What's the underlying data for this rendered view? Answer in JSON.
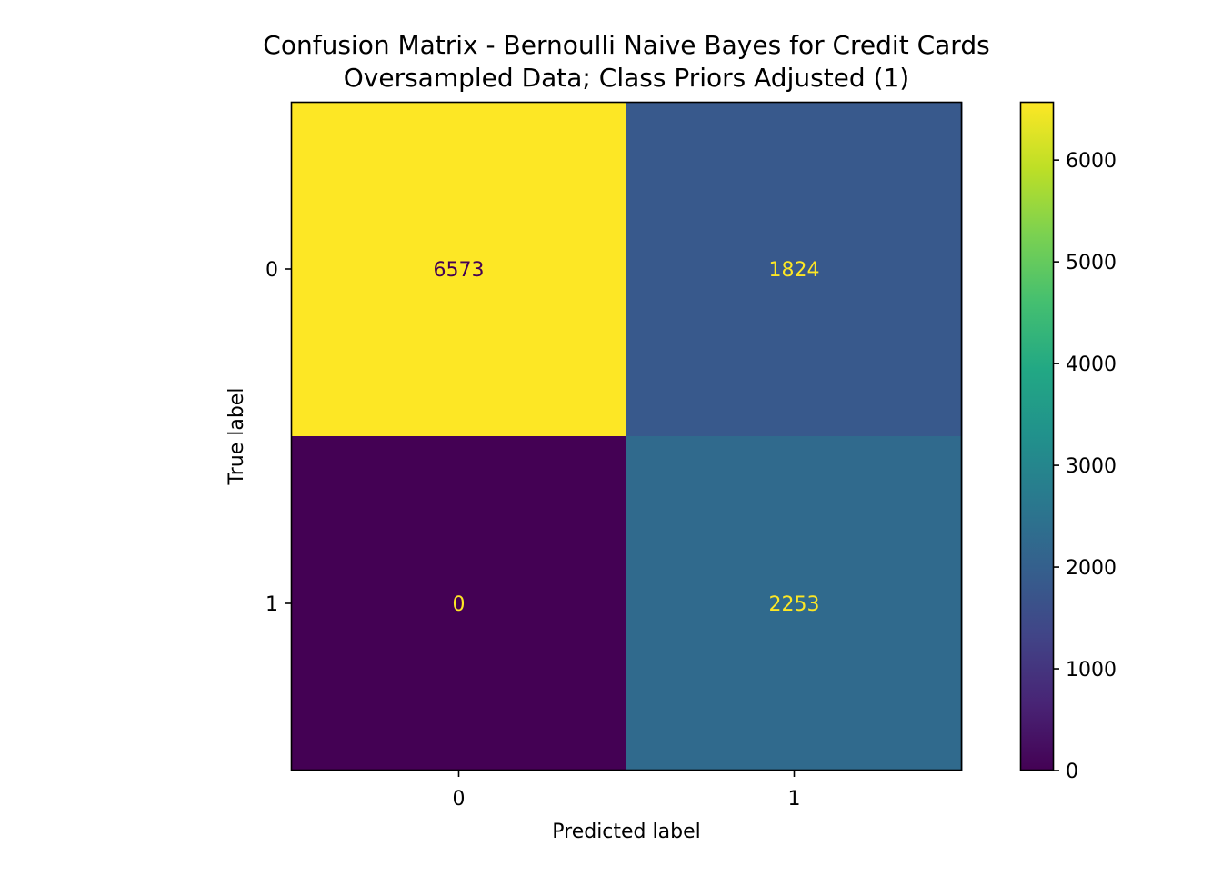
{
  "chart_data": {
    "type": "heatmap",
    "title_lines": [
      "Confusion Matrix - Bernoulli Naive Bayes for Credit Cards",
      "Oversampled Data; Class Priors Adjusted (1)"
    ],
    "xlabel": "Predicted label",
    "ylabel": "True label",
    "x_categories": [
      "0",
      "1"
    ],
    "y_categories": [
      "0",
      "1"
    ],
    "matrix": [
      [
        6573,
        1824
      ],
      [
        0,
        2253
      ]
    ],
    "colormap": "viridis",
    "color_range": [
      0,
      6573
    ],
    "colorbar_ticks": [
      0,
      1000,
      2000,
      3000,
      4000,
      5000,
      6000
    ],
    "colorbar_tick_labels": [
      "0",
      "1000",
      "2000",
      "3000",
      "4000",
      "5000",
      "6000"
    ],
    "text_colors": {
      "on_light": "#440154",
      "on_dark": "#fde725"
    },
    "grid": false,
    "legend": "colorbar-right"
  }
}
